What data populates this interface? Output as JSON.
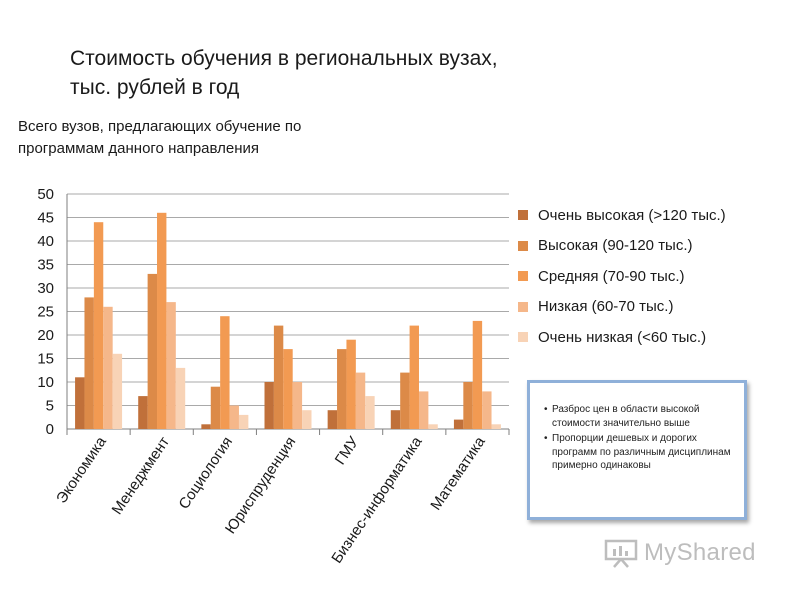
{
  "title_line1": "Стоимость обучения в региональных вузах,",
  "title_line2": "тыс. рублей в год",
  "ylabel": "Всего вузов, предлагающих обучение по программам данного направления",
  "chart_data": {
    "type": "bar",
    "title": "Стоимость обучения в региональных вузах, тыс. рублей в год",
    "ylabel": "Всего вузов, предлагающих обучение по программам данного направления",
    "categories": [
      "Экономика",
      "Менеджмент",
      "Социология",
      "Юриспруденция",
      "ГМУ",
      "Бизнес-информатика",
      "Математика"
    ],
    "ylim": [
      0,
      50
    ],
    "yticks": [
      0,
      5,
      10,
      15,
      20,
      25,
      30,
      35,
      40,
      45,
      50
    ],
    "grid": true,
    "legend_position": "right",
    "series": [
      {
        "name": "Очень высокая (>120 тыс.)",
        "color": "#c0703a",
        "values": [
          11,
          7,
          1,
          10,
          4,
          4,
          2
        ]
      },
      {
        "name": "Высокая (90-120 тыс.)",
        "color": "#dc8a48",
        "values": [
          28,
          33,
          9,
          22,
          17,
          12,
          10
        ]
      },
      {
        "name": "Средняя (70-90 тыс.)",
        "color": "#f29a52",
        "values": [
          44,
          46,
          24,
          17,
          19,
          22,
          23
        ]
      },
      {
        "name": "Низкая (60-70 тыс.)",
        "color": "#f5b78a",
        "values": [
          26,
          27,
          5,
          10,
          12,
          8,
          8
        ]
      },
      {
        "name": "Очень низкая (<60 тыс.)",
        "color": "#f8d3b6",
        "values": [
          16,
          13,
          3,
          4,
          7,
          1,
          1
        ]
      }
    ]
  },
  "notes": [
    "Разброс цен в области высокой стоимости значительно выше",
    "Пропорции дешевых и дорогих программ  по различным дисциплинам примерно одинаковы"
  ],
  "bullet_char": "•",
  "logo_text": "MyShared",
  "logo_icon": "presentation-board-icon",
  "colors": {
    "grid": "#8c8c8c",
    "axis": "#7f7f7f",
    "note_border": "#8fb0d9",
    "logo": "#bdbdbd"
  }
}
